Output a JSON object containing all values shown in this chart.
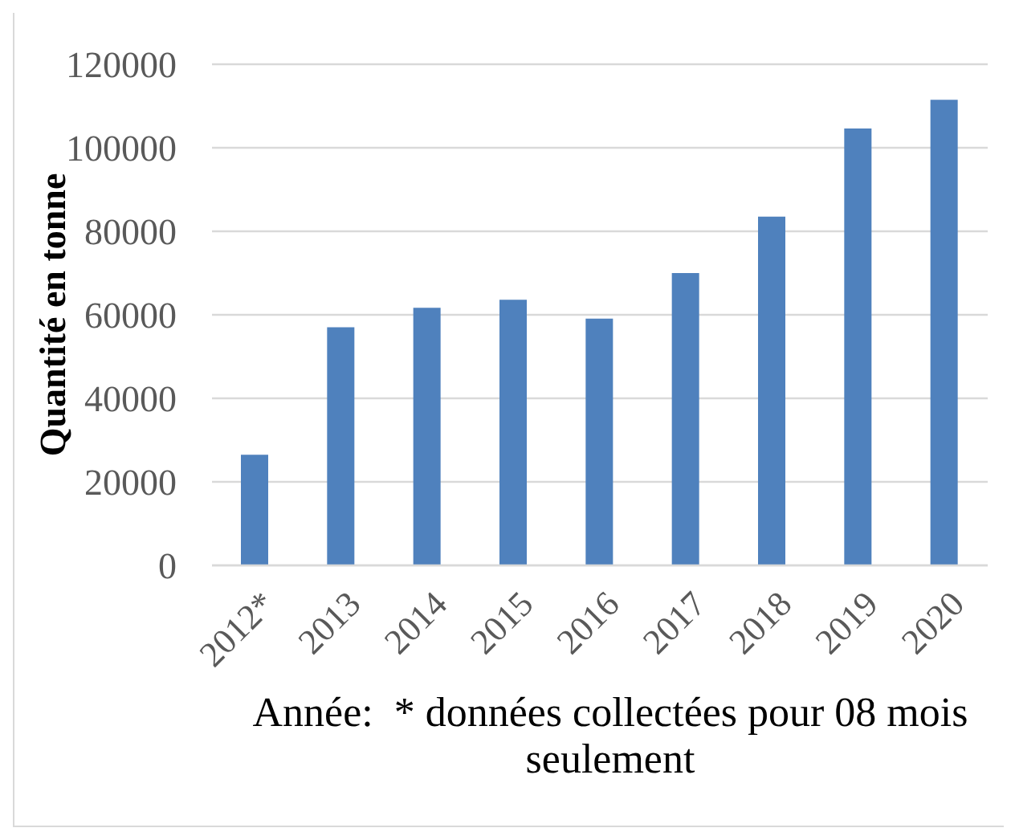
{
  "chart_data": {
    "type": "bar",
    "xlabel": "Année:  * données collectées pour 08 mois seulement",
    "ylabel": "Quantité en tonne",
    "categories": [
      "2012*",
      "2013",
      "2014",
      "2015",
      "2016",
      "2017",
      "2018",
      "2019",
      "2020"
    ],
    "values": [
      26500,
      57000,
      61700,
      63600,
      59100,
      70000,
      83500,
      104600,
      111500
    ],
    "color": "#4f81bd",
    "ylim": [
      0,
      120000
    ],
    "yticks": [
      0,
      20000,
      40000,
      60000,
      80000,
      100000,
      120000
    ],
    "grid": "y"
  }
}
